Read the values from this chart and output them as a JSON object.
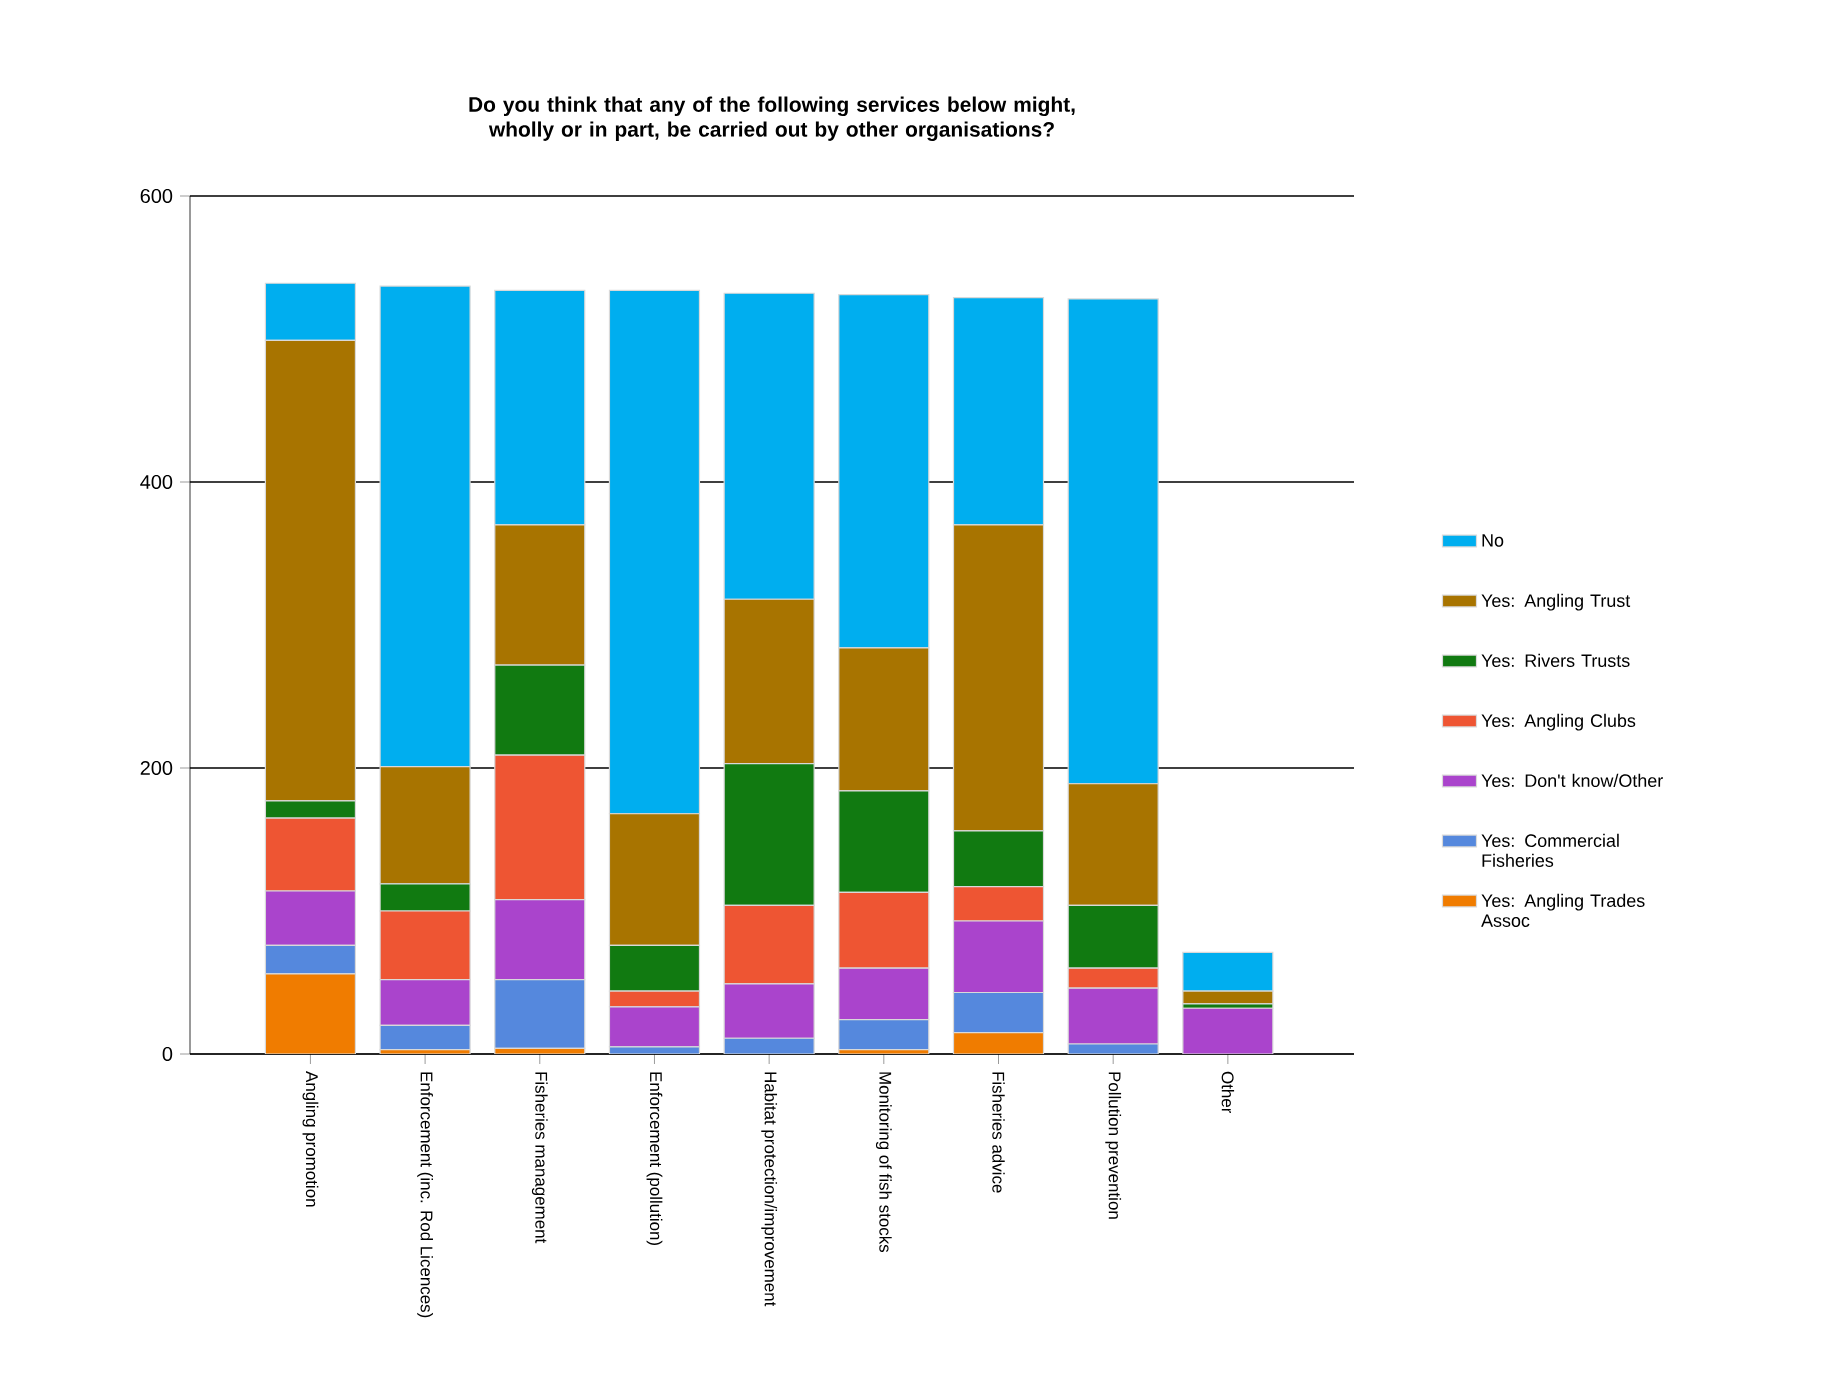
{
  "chart_data": {
    "type": "bar",
    "stacked": true,
    "title": "Do you think that any of the following services below might, wholly or in part, be carried out by other organisations?",
    "categories": [
      "Angling promotion",
      "Enforcement (inc. Rod Licences)",
      "Fisheries management",
      "Enforcement (pollution)",
      "Habitat protection/improvement",
      "Monitoring of fish stocks",
      "Fisheries advice",
      "Pollution prevention",
      "Other"
    ],
    "series": [
      {
        "name": "Yes: Angling Trades Assoc",
        "color": "#f07c00",
        "values": [
          56,
          3,
          4,
          0,
          null,
          3,
          15,
          0,
          0
        ]
      },
      {
        "name": "Yes: Commercial Fisheries",
        "color": "#5588dd",
        "values": [
          20,
          17,
          48,
          5,
          11,
          21,
          28,
          7,
          0
        ]
      },
      {
        "name": "Yes: Don't know/Other",
        "color": "#aa44cc",
        "values": [
          38,
          32,
          56,
          28,
          38,
          36,
          50,
          39,
          32
        ]
      },
      {
        "name": "Yes: Angling Clubs",
        "color": "#ee5533",
        "values": [
          51,
          48,
          101,
          11,
          55,
          53,
          24,
          14,
          0
        ]
      },
      {
        "name": "Yes: Rivers Trusts",
        "color": "#117a11",
        "values": [
          12,
          19,
          63,
          32,
          99,
          71,
          39,
          44,
          3
        ]
      },
      {
        "name": "Yes: Angling Trust",
        "color": "#a87400",
        "values": [
          322,
          82,
          98,
          92,
          115,
          100,
          214,
          85,
          9
        ]
      },
      {
        "name": "No",
        "color": "#00aeef",
        "values": [
          40,
          336,
          164,
          366,
          214,
          247,
          159,
          339,
          27
        ]
      }
    ],
    "ylim": [
      0,
      600
    ],
    "yticks": [
      0,
      200,
      400,
      600
    ],
    "grid": "y",
    "legend": "right"
  }
}
